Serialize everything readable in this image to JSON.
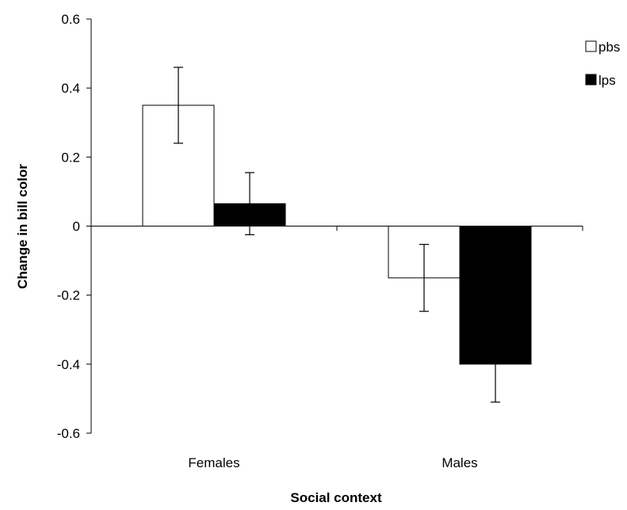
{
  "chart_data": {
    "type": "bar",
    "xlabel": "Social context",
    "ylabel": "Change in bill color",
    "categories": [
      "Females",
      "Males"
    ],
    "series": [
      {
        "name": "pbs",
        "values": [
          0.35,
          -0.15
        ],
        "errors": [
          0.11,
          0.097
        ],
        "color": "#ffffff"
      },
      {
        "name": "lps",
        "values": [
          0.065,
          -0.4
        ],
        "errors": [
          0.09,
          0.11
        ],
        "color": "#000000"
      }
    ],
    "ylim": [
      -0.6,
      0.6
    ],
    "yticks": [
      0.6,
      0.4,
      0.2,
      0,
      -0.2,
      -0.4,
      -0.6
    ],
    "ytick_labels": [
      "0.6",
      "0.4",
      "0.2",
      "0",
      "-0.2",
      "-0.4",
      "-0.6"
    ],
    "grid": false,
    "legend_position": "top-right"
  }
}
